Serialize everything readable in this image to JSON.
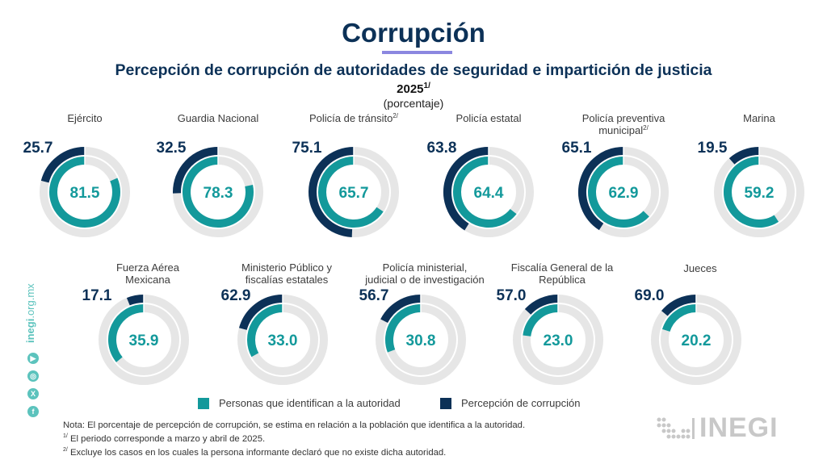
{
  "header": {
    "title": "Corrupción",
    "subtitle": "Percepción de corrupción de autoridades de seguridad e impartición de justicia",
    "year": "2025",
    "year_note": "1/",
    "unit": "(porcentaje)"
  },
  "colors": {
    "identify": "#13999b",
    "corruption": "#0c3157",
    "track": "#e6e6e6",
    "accent_underline": "#8b87e0",
    "social": "#5cc3bd"
  },
  "chart_data": {
    "type": "donut",
    "title": "Percepción de corrupción de autoridades de seguridad e impartición de justicia",
    "subtitle": "2025 (porcentaje)",
    "unit": "percent",
    "series": [
      {
        "name": "Personas que identifican a la autoridad",
        "key": "identify"
      },
      {
        "name": "Percepción de corrupción",
        "key": "corruption"
      }
    ],
    "outer_ring_note": "Percepción de corrupción se estima en relación a la población que identifica a la autoridad",
    "categories": [
      {
        "label": [
          "Ejército"
        ],
        "sup": "",
        "identify": 81.5,
        "corruption": 25.7
      },
      {
        "label": [
          "Guardia Nacional"
        ],
        "sup": "",
        "identify": 78.3,
        "corruption": 32.5
      },
      {
        "label": [
          "Policía de tránsito"
        ],
        "sup": "2/",
        "identify": 65.7,
        "corruption": 75.1
      },
      {
        "label": [
          "Policía estatal"
        ],
        "sup": "",
        "identify": 64.4,
        "corruption": 63.8
      },
      {
        "label": [
          "Policía preventiva",
          "municipal"
        ],
        "sup": "2/",
        "identify": 62.9,
        "corruption": 65.1
      },
      {
        "label": [
          "Marina"
        ],
        "sup": "",
        "identify": 59.2,
        "corruption": 19.5
      },
      {
        "label": [
          "Fuerza Aérea",
          "Mexicana"
        ],
        "sup": "",
        "identify": 35.9,
        "corruption": 17.1
      },
      {
        "label": [
          "Ministerio Público y",
          "fiscalías estatales"
        ],
        "sup": "",
        "identify": 33.0,
        "corruption": 62.9
      },
      {
        "label": [
          "Policía ministerial,",
          "judicial o de investigación"
        ],
        "sup": "",
        "identify": 30.8,
        "corruption": 56.7
      },
      {
        "label": [
          "Fiscalía General de la",
          "República"
        ],
        "sup": "",
        "identify": 23.0,
        "corruption": 57.0
      },
      {
        "label": [
          "Jueces"
        ],
        "sup": "",
        "identify": 20.2,
        "corruption": 69.0
      }
    ]
  },
  "legend": {
    "identify": "Personas que identifican a la autoridad",
    "corruption": "Percepción de corrupción"
  },
  "notes": {
    "nota": "Nota: El porcentaje de percepción de corrupción, se estima en relación a la población que identifica a la autoridad.",
    "n1_mark": "1/",
    "n1": " El periodo corresponde a marzo y abril de 2025.",
    "n2_mark": "2/",
    "n2": " Excluye los casos en los cuales la persona informante declaró que no existe dicha autoridad."
  },
  "sidebar": {
    "url_bold": "inegi",
    "url_rest": ".org.mx",
    "social": [
      {
        "name": "youtube-icon",
        "glyph": "▶"
      },
      {
        "name": "instagram-icon",
        "glyph": "◎"
      },
      {
        "name": "x-icon",
        "glyph": "X"
      },
      {
        "name": "facebook-icon",
        "glyph": "f"
      }
    ]
  },
  "logo": {
    "text": "INEGI"
  }
}
